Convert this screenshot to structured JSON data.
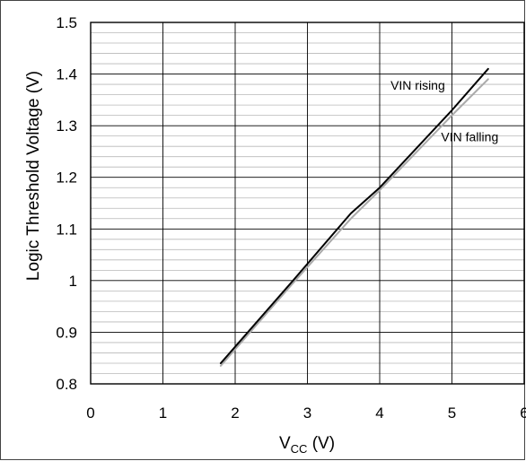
{
  "chart_data": {
    "type": "line",
    "xlabel_main": "V",
    "xlabel_sub": "CC",
    "xlabel_unit": " (V)",
    "ylabel": "Logic Threshold Voltage (V)",
    "xlim": [
      0,
      6
    ],
    "ylim": [
      0.8,
      1.5
    ],
    "xticks": [
      0,
      1,
      2,
      3,
      4,
      5,
      6
    ],
    "xtick_labels": [
      "0",
      "1",
      "2",
      "3",
      "4",
      "5",
      "6"
    ],
    "yticks": [
      0.8,
      0.9,
      1,
      1.1,
      1.2,
      1.3,
      1.4,
      1.5
    ],
    "ytick_labels": [
      "0.8",
      "0.9",
      "1",
      "1.1",
      "1.2",
      "1.3",
      "1.4",
      "1.5"
    ],
    "grid": true,
    "series": [
      {
        "name": "VIN rising",
        "color": "#000000",
        "x": [
          1.8,
          2.8,
          3.6,
          4.0,
          5.0,
          5.5
        ],
        "y": [
          0.84,
          1.0,
          1.13,
          1.18,
          1.33,
          1.41
        ]
      },
      {
        "name": "VIN falling",
        "color": "#aaaaaa",
        "x": [
          1.8,
          2.8,
          3.6,
          4.0,
          5.0,
          5.5
        ],
        "y": [
          0.835,
          0.995,
          1.12,
          1.175,
          1.32,
          1.39
        ]
      }
    ],
    "annotations": [
      {
        "text": "VIN rising",
        "x": 4.15,
        "y": 1.37
      },
      {
        "text": "VIN falling",
        "x": 4.85,
        "y": 1.27
      }
    ]
  }
}
